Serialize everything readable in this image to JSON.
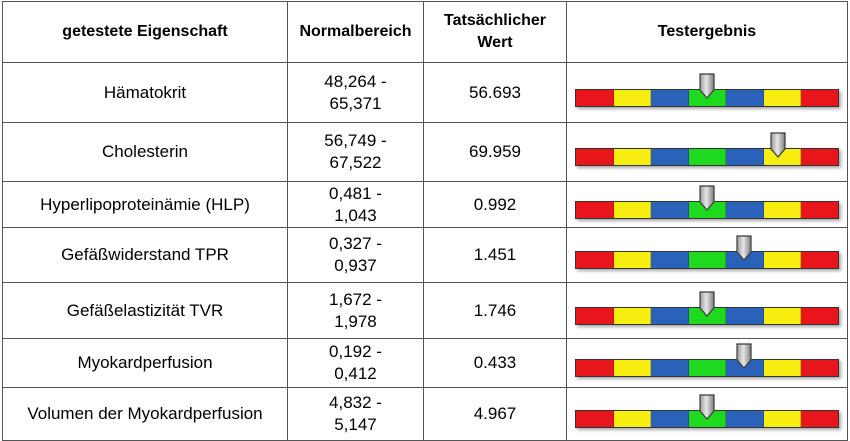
{
  "headers": {
    "property": "getestete Eigenschaft",
    "normal_range": "Normalbereich",
    "actual_value": "Tatsächlicher Wert",
    "result": "Testergebnis"
  },
  "scale_colors": [
    "#e8161b",
    "#f6ee10",
    "#2b62b9",
    "#1ed91e",
    "#2b62b9",
    "#f6ee10",
    "#e8161b"
  ],
  "rows": [
    {
      "property": "Hämatokrit",
      "range": "48,264 - 65,371",
      "value": "56.693",
      "marker_position": 0.5
    },
    {
      "property": "Cholesterin",
      "range": "56,749 - 67,522",
      "value": "69.959",
      "marker_position": 0.77
    },
    {
      "property": "Hyperlipoproteinämie (HLP)",
      "range": "0,481 - 1,043",
      "value": "0.992",
      "marker_position": 0.5
    },
    {
      "property": "Gefäßwiderstand TPR",
      "range": "0,327 - 0,937",
      "value": "1.451",
      "marker_position": 0.64
    },
    {
      "property": "Gefäßelastizität TVR",
      "range": "1,672 - 1,978",
      "value": "1.746",
      "marker_position": 0.5
    },
    {
      "property": "Myokardperfusion",
      "range": "0,192 - 0,412",
      "value": "0.433",
      "marker_position": 0.64
    },
    {
      "property": "Volumen der Myokardperfusion",
      "range": "4,832 - 5,147",
      "value": "4.967",
      "marker_position": 0.5
    }
  ]
}
